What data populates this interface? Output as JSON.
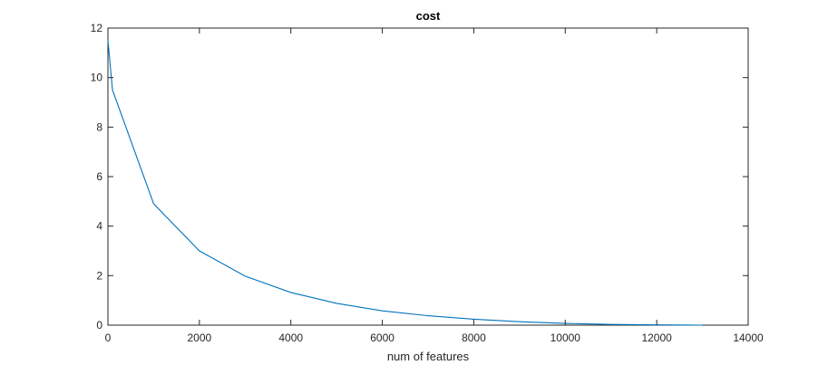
{
  "chart_data": {
    "type": "line",
    "title": "cost",
    "xlabel": "num of features",
    "ylabel": "",
    "xlim": [
      0,
      14000
    ],
    "ylim": [
      0,
      12
    ],
    "xticks": [
      0,
      2000,
      4000,
      6000,
      8000,
      10000,
      12000,
      14000
    ],
    "yticks": [
      0,
      2,
      4,
      6,
      8,
      10,
      12
    ],
    "xtick_labels": [
      "0",
      "2000",
      "4000",
      "6000",
      "8000",
      "10000",
      "12000",
      "14000"
    ],
    "ytick_labels": [
      "0",
      "2",
      "4",
      "6",
      "8",
      "10",
      "12"
    ],
    "grid": false,
    "series": [
      {
        "color": "#0072bd",
        "x": [
          0,
          100,
          1000,
          2000,
          3000,
          4000,
          5000,
          6000,
          7000,
          8000,
          9000,
          10000,
          11000,
          12000,
          13000
        ],
        "y": [
          11.5,
          9.5,
          4.9,
          3.0,
          1.98,
          1.32,
          0.88,
          0.58,
          0.38,
          0.24,
          0.14,
          0.07,
          0.03,
          0.01,
          0.0
        ]
      }
    ]
  }
}
